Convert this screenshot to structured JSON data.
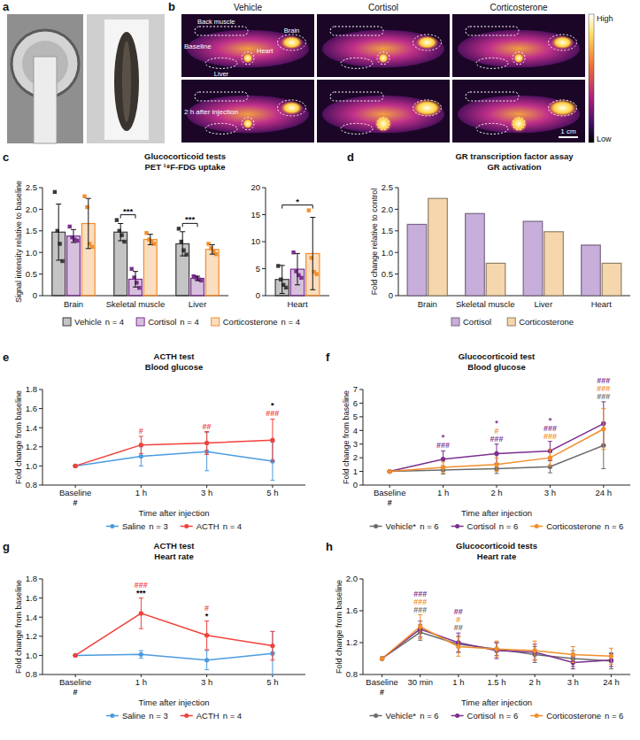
{
  "images": [
    {
      "panel": "a"
    },
    {
      "panel": "b",
      "columns": [
        "Vehicle",
        "Cortisol",
        "Corticosterone"
      ],
      "rows": [
        "Baseline",
        "2 h after injection"
      ],
      "regions": [
        "Back muscle",
        "Brain",
        "Liver",
        "Heart"
      ],
      "colorbar": {
        "high": "High",
        "low": "Low"
      },
      "scale_bar": "1 cm"
    }
  ],
  "chart_data": [
    {
      "panel": "c",
      "type": "bar",
      "title": "Glucocorticoid tests",
      "subtitle": "PET ¹⁸F-FDG uptake",
      "y_label": "Signal intensity relative to baseline",
      "categories": [
        "Brain",
        "Skeletal muscle",
        "Liver"
      ],
      "ylim": [
        0,
        2.5
      ],
      "yticks": [
        0,
        0.5,
        {
          "value": 1,
          "label": "1.0"
        },
        1.5,
        {
          "value": 2,
          "label": "2.0"
        },
        2.5
      ],
      "legend": "bottom",
      "series": [
        {
          "name": "Vehicle",
          "n_label": "n = 4",
          "color": "#3a3a3a",
          "marker": "square",
          "values": [
            1.47,
            1.47,
            1.2
          ],
          "errors": [
            0.65,
            0.2,
            0.28
          ],
          "points": [
            [
              2.4,
              1.5,
              1.2,
              0.8
            ],
            [
              1.75,
              1.5,
              1.4,
              1.25
            ],
            [
              1.55,
              1.25,
              1.05,
              0.95
            ]
          ]
        },
        {
          "name": "Cortisol",
          "n_label": "n = 4",
          "color": "#7b2f8f",
          "marker": "square",
          "values": [
            1.38,
            0.38,
            0.4
          ],
          "errors": [
            0.15,
            0.18,
            0.05
          ],
          "points": [
            [
              1.6,
              1.35,
              1.3,
              1.27
            ],
            [
              0.62,
              0.42,
              0.3,
              0.18
            ],
            [
              0.45,
              0.42,
              0.38,
              0.35
            ]
          ]
        },
        {
          "name": "Corticosterone",
          "n_label": "n = 4",
          "color": "#f28e2b",
          "marker": "square",
          "values": [
            1.67,
            1.3,
            1.07
          ],
          "errors": [
            0.58,
            0.12,
            0.11
          ],
          "points": [
            [
              2.3,
              2.05,
              1.2,
              1.13
            ],
            [
              1.45,
              1.3,
              1.25,
              1.2
            ],
            [
              1.2,
              1.1,
              1.02,
              0.96
            ]
          ]
        }
      ],
      "annotations": [
        {
          "category": 1,
          "between": [
            0,
            1
          ],
          "text": "***"
        },
        {
          "category": 2,
          "between": [
            0,
            1
          ],
          "text": "***"
        }
      ]
    },
    {
      "type": "bar",
      "categories": [
        "Heart"
      ],
      "ylim": [
        0,
        20
      ],
      "yticks": [
        0,
        5,
        10,
        15,
        20
      ],
      "series": [
        {
          "color": "#3a3a3a",
          "marker": "square",
          "values": [
            3.0
          ],
          "errors": [
            2.6
          ],
          "points": [
            [
              5.5,
              3.0,
              2.0,
              1.5
            ]
          ]
        },
        {
          "color": "#7b2f8f",
          "marker": "square",
          "values": [
            4.9
          ],
          "errors": [
            2.9
          ],
          "points": [
            [
              8.0,
              4.5,
              3.8,
              3.3
            ]
          ]
        },
        {
          "color": "#f28e2b",
          "marker": "square",
          "values": [
            7.8
          ],
          "errors": [
            6.7
          ],
          "points": [
            [
              15.8,
              7.0,
              4.4,
              4.0
            ]
          ]
        }
      ],
      "annotations": [
        {
          "category": 0,
          "between": [
            0,
            2
          ],
          "text": "*"
        }
      ]
    },
    {
      "panel": "d",
      "type": "bar",
      "title": "GR transcription factor assay",
      "subtitle": "GR activation",
      "y_label": "Fold change relative to control",
      "categories": [
        "Brain",
        "Skeletal muscle",
        "Liver",
        "Heart"
      ],
      "ylim": [
        0,
        2.5
      ],
      "yticks": [
        0,
        0.5,
        {
          "value": 1,
          "label": "1.0"
        },
        1.5,
        {
          "value": 2,
          "label": "2.0"
        },
        2.5
      ],
      "legend": "bottom",
      "series": [
        {
          "name": "Cortisol",
          "color": "#c8aedb",
          "values": [
            1.65,
            1.9,
            1.72,
            1.17
          ]
        },
        {
          "name": "Corticosterone",
          "color": "#f5d6ad",
          "values": [
            2.25,
            0.75,
            1.48,
            0.75
          ]
        }
      ]
    },
    {
      "panel": "e",
      "type": "line",
      "title": "ACTH test",
      "subtitle": "Blood glucose",
      "y_label": "Fold change from baseline",
      "x_label": "Time after injection",
      "categories": [
        "Baseline",
        "1 h",
        "3 h",
        "5 h"
      ],
      "ylim": [
        0.8,
        1.8
      ],
      "yticks": [
        0.8,
        {
          "value": 1,
          "label": "1.0"
        },
        1.2,
        1.4,
        1.6,
        1.8
      ],
      "legend": "bottom",
      "series": [
        {
          "name": "Saline",
          "n_label": "n = 3",
          "color": "#4a9be0",
          "marker": "circle",
          "values": [
            1.0,
            1.1,
            1.15,
            1.05
          ],
          "errors": [
            0,
            0.1,
            0.2,
            0.2
          ]
        },
        {
          "name": "ACTH",
          "n_label": "n = 4",
          "color": "#f0423c",
          "marker": "circle",
          "values": [
            1.0,
            1.22,
            1.24,
            1.27
          ],
          "errors": [
            0,
            0.09,
            0.12,
            0.22
          ]
        }
      ],
      "annotations": [
        {
          "category": 0,
          "text": "#",
          "color": "#000000",
          "below_axis": true
        },
        {
          "category": 1,
          "text": "#",
          "color": "#f0423c"
        },
        {
          "category": 2,
          "text": "##",
          "color": "#f0423c"
        },
        {
          "category": 3,
          "text": "*",
          "color": "#000000"
        },
        {
          "category": 3,
          "text": "###",
          "color": "#f0423c"
        }
      ]
    },
    {
      "panel": "f",
      "type": "line",
      "title": "Glucocorticoid test",
      "subtitle": "Blood glucose",
      "y_label": "Fold change from baseline",
      "x_label": "Time after injection",
      "categories": [
        "Baseline",
        "1 h",
        "2 h",
        "3 h",
        "24 h"
      ],
      "ylim": [
        0,
        7
      ],
      "yticks": [
        0,
        1,
        2,
        3,
        4,
        5,
        6,
        7
      ],
      "legend": "bottom",
      "series": [
        {
          "name": "Vehicle*",
          "n_label": "n = 6",
          "color": "#6b6b6b",
          "marker": "circle",
          "values": [
            1,
            1.1,
            1.2,
            1.35,
            2.9
          ],
          "errors": [
            0,
            0.3,
            0.35,
            0.45,
            1.7
          ]
        },
        {
          "name": "Cortisol",
          "n_label": "n = 6",
          "color": "#7b2f8f",
          "marker": "circle",
          "values": [
            1,
            1.9,
            2.3,
            2.5,
            4.5
          ],
          "errors": [
            0,
            0.6,
            0.7,
            0.7,
            1.6
          ]
        },
        {
          "name": "Corticosterone",
          "n_label": "n = 6",
          "color": "#f28e2b",
          "marker": "circle",
          "values": [
            1,
            1.3,
            1.5,
            2.0,
            4.1
          ],
          "errors": [
            0,
            0.4,
            0.5,
            0.6,
            1.5
          ]
        }
      ],
      "annotations": [
        {
          "category": 0,
          "text": "#",
          "color": "#000000",
          "below_axis": true
        },
        {
          "category": 1,
          "text": "*",
          "color": "#7b2f8f"
        },
        {
          "category": 1,
          "text": "###",
          "color": "#7b2f8f"
        },
        {
          "category": 2,
          "text": "*",
          "color": "#7b2f8f"
        },
        {
          "category": 2,
          "text": "#",
          "color": "#f28e2b"
        },
        {
          "category": 2,
          "text": "###",
          "color": "#7b2f8f"
        },
        {
          "category": 3,
          "text": "*",
          "color": "#7b2f8f"
        },
        {
          "category": 3,
          "text": "###",
          "color": "#7b2f8f"
        },
        {
          "category": 3,
          "text": "###",
          "color": "#f28e2b"
        },
        {
          "category": 4,
          "text": "###",
          "color": "#7b2f8f"
        },
        {
          "category": 4,
          "text": "###",
          "color": "#f28e2b"
        },
        {
          "category": 4,
          "text": "###",
          "color": "#6b6b6b"
        }
      ]
    },
    {
      "panel": "g",
      "type": "line",
      "title": "ACTH test",
      "subtitle": "Heart rate",
      "y_label": "Fold change from baseline",
      "x_label": "Time after injection",
      "categories": [
        "Baseline",
        "1 h",
        "3 h",
        "5 h"
      ],
      "ylim": [
        0.8,
        1.8
      ],
      "yticks": [
        0.8,
        {
          "value": 1,
          "label": "1.0"
        },
        1.2,
        1.4,
        1.6,
        1.8
      ],
      "legend": "bottom",
      "series": [
        {
          "name": "Saline",
          "n_label": "n = 3",
          "color": "#4a9be0",
          "marker": "circle",
          "values": [
            1.0,
            1.01,
            0.95,
            1.02
          ],
          "errors": [
            0,
            0.04,
            0.1,
            0.23
          ]
        },
        {
          "name": "ACTH",
          "n_label": "n = 4",
          "color": "#f0423c",
          "marker": "circle",
          "values": [
            1.0,
            1.44,
            1.21,
            1.1
          ],
          "errors": [
            0,
            0.16,
            0.15,
            0.15
          ]
        }
      ],
      "annotations": [
        {
          "category": 0,
          "text": "#",
          "color": "#000000",
          "below_axis": true
        },
        {
          "category": 1,
          "text": "###",
          "color": "#f0423c"
        },
        {
          "category": 1,
          "text": "***",
          "color": "#000000"
        },
        {
          "category": 2,
          "text": "#",
          "color": "#f0423c"
        },
        {
          "category": 2,
          "text": "*",
          "color": "#000000"
        }
      ]
    },
    {
      "panel": "h",
      "type": "line",
      "title": "Glucocorticoid tests",
      "subtitle": "Heart rate",
      "y_label": "Fold change from baseline",
      "x_label": "Time after injection",
      "categories": [
        "Baseline",
        "30 min",
        "1 h",
        "1.5 h",
        "2 h",
        "3 h",
        "24 h"
      ],
      "ylim": [
        0.8,
        2.0
      ],
      "yticks": [
        0.8,
        1.2,
        1.6,
        {
          "value": 2,
          "label": "2.0"
        }
      ],
      "legend": "bottom",
      "series": [
        {
          "name": "Vehicle*",
          "n_label": "n = 6",
          "color": "#6b6b6b",
          "marker": "circle",
          "values": [
            1,
            1.33,
            1.18,
            1.12,
            1.05,
            1.0,
            0.97
          ],
          "errors": [
            0,
            0.1,
            0.1,
            0.08,
            0.1,
            0.1,
            0.1
          ]
        },
        {
          "name": "Cortisol",
          "n_label": "n = 6",
          "color": "#7b2f8f",
          "marker": "circle",
          "values": [
            1,
            1.37,
            1.2,
            1.1,
            1.08,
            0.95,
            0.98
          ],
          "errors": [
            0,
            0.1,
            0.12,
            0.1,
            0.1,
            0.08,
            0.08
          ]
        },
        {
          "name": "Corticosterone",
          "n_label": "n = 6",
          "color": "#f28e2b",
          "marker": "circle",
          "values": [
            1,
            1.4,
            1.15,
            1.12,
            1.1,
            1.05,
            1.03
          ],
          "errors": [
            0,
            0.15,
            0.12,
            0.1,
            0.12,
            0.1,
            0.1
          ]
        }
      ],
      "annotations": [
        {
          "category": 0,
          "text": "#",
          "color": "#000000",
          "below_axis": true
        },
        {
          "category": 1,
          "text": "###",
          "color": "#7b2f8f"
        },
        {
          "category": 1,
          "text": "###",
          "color": "#f28e2b"
        },
        {
          "category": 1,
          "text": "###",
          "color": "#6b6b6b"
        },
        {
          "category": 2,
          "text": "##",
          "color": "#7b2f8f"
        },
        {
          "category": 2,
          "text": "#",
          "color": "#f28e2b"
        },
        {
          "category": 2,
          "text": "##",
          "color": "#6b6b6b"
        }
      ]
    }
  ]
}
